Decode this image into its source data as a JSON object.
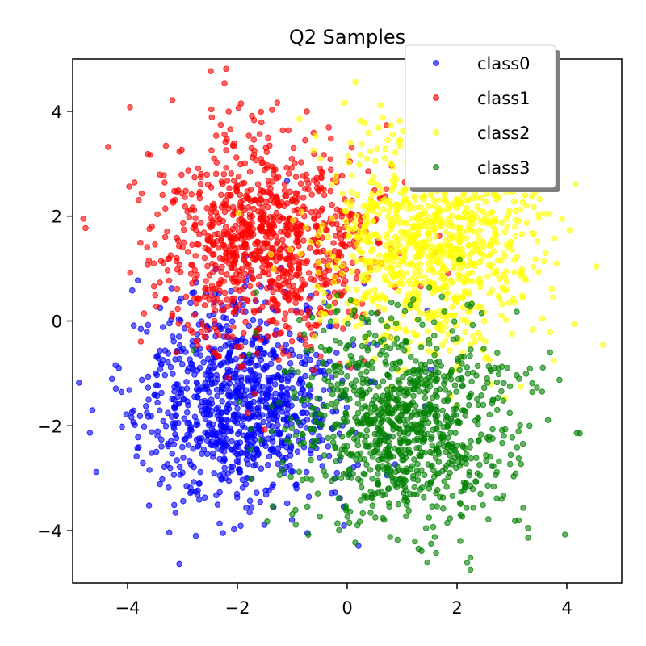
{
  "chart_data": {
    "type": "scatter",
    "title": "Q2 Samples",
    "xlabel": "",
    "ylabel": "",
    "xlim": [
      -5,
      5
    ],
    "ylim": [
      -5,
      5
    ],
    "xticks": [
      -4,
      -2,
      0,
      2,
      4
    ],
    "yticks": [
      -4,
      -2,
      0,
      2,
      4
    ],
    "xtick_labels": [
      "−4",
      "−2",
      "0",
      "2",
      "4"
    ],
    "ytick_labels": [
      "−4",
      "−2",
      "0",
      "2",
      "4"
    ],
    "grid": false,
    "legend_position": "top-right",
    "series": [
      {
        "name": "class0",
        "color": "#0000ff",
        "center": [
          -2.0,
          -1.5
        ],
        "std": [
          1.0,
          1.0
        ],
        "count": 1000
      },
      {
        "name": "class1",
        "color": "#ff0000",
        "center": [
          -1.5,
          1.5
        ],
        "std": [
          1.0,
          1.0
        ],
        "count": 1000
      },
      {
        "name": "class2",
        "color": "#ffff00",
        "center": [
          1.5,
          1.5
        ],
        "std": [
          1.0,
          1.0
        ],
        "count": 1000
      },
      {
        "name": "class3",
        "color": "#008000",
        "center": [
          1.0,
          -2.0
        ],
        "std": [
          1.0,
          1.0
        ],
        "count": 1000
      }
    ]
  }
}
